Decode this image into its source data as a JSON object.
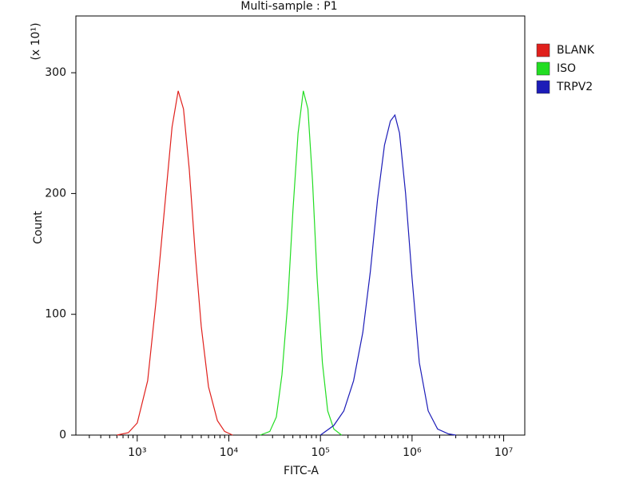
{
  "chart_data": {
    "type": "line",
    "title": "Multi-sample : P1",
    "x_label": "FITC-A",
    "y_label": "Count",
    "y_multiplier": "(x 10¹)",
    "xscale": "log",
    "xlim": [
      214,
      17000000
    ],
    "ylim": [
      0,
      347
    ],
    "xticks": [
      {
        "value": 1000,
        "label": "10³"
      },
      {
        "value": 10000,
        "label": "10⁴"
      },
      {
        "value": 100000,
        "label": "10⁵"
      },
      {
        "value": 1000000,
        "label": "10⁶"
      },
      {
        "value": 10000000,
        "label": "10⁷"
      }
    ],
    "yticks": [
      0,
      100,
      200,
      300
    ],
    "legend": "upper right outside",
    "series": [
      {
        "name": "BLANK",
        "color": "#e0201c",
        "x": [
          600,
          800,
          1000,
          1300,
          1600,
          2000,
          2400,
          2800,
          3200,
          3700,
          4300,
          5000,
          6000,
          7500,
          9000,
          11000
        ],
        "values": [
          0,
          2,
          10,
          45,
          110,
          190,
          255,
          285,
          270,
          220,
          150,
          90,
          40,
          12,
          3,
          0
        ]
      },
      {
        "name": "ISO",
        "color": "#22dd22",
        "x": [
          22000,
          28000,
          33000,
          38000,
          44000,
          50000,
          57000,
          65000,
          73000,
          82000,
          92000,
          105000,
          120000,
          140000,
          170000
        ],
        "values": [
          0,
          3,
          15,
          50,
          110,
          185,
          250,
          285,
          270,
          210,
          130,
          60,
          20,
          5,
          0
        ]
      },
      {
        "name": "TRPV2",
        "color": "#1c1cb8",
        "x": [
          100000,
          140000,
          180000,
          230000,
          290000,
          350000,
          420000,
          500000,
          580000,
          650000,
          730000,
          850000,
          1000000,
          1200000,
          1500000,
          1900000,
          2500000,
          3000000
        ],
        "values": [
          0,
          8,
          20,
          45,
          85,
          135,
          195,
          240,
          260,
          265,
          250,
          200,
          130,
          60,
          20,
          5,
          1,
          0
        ]
      }
    ]
  }
}
